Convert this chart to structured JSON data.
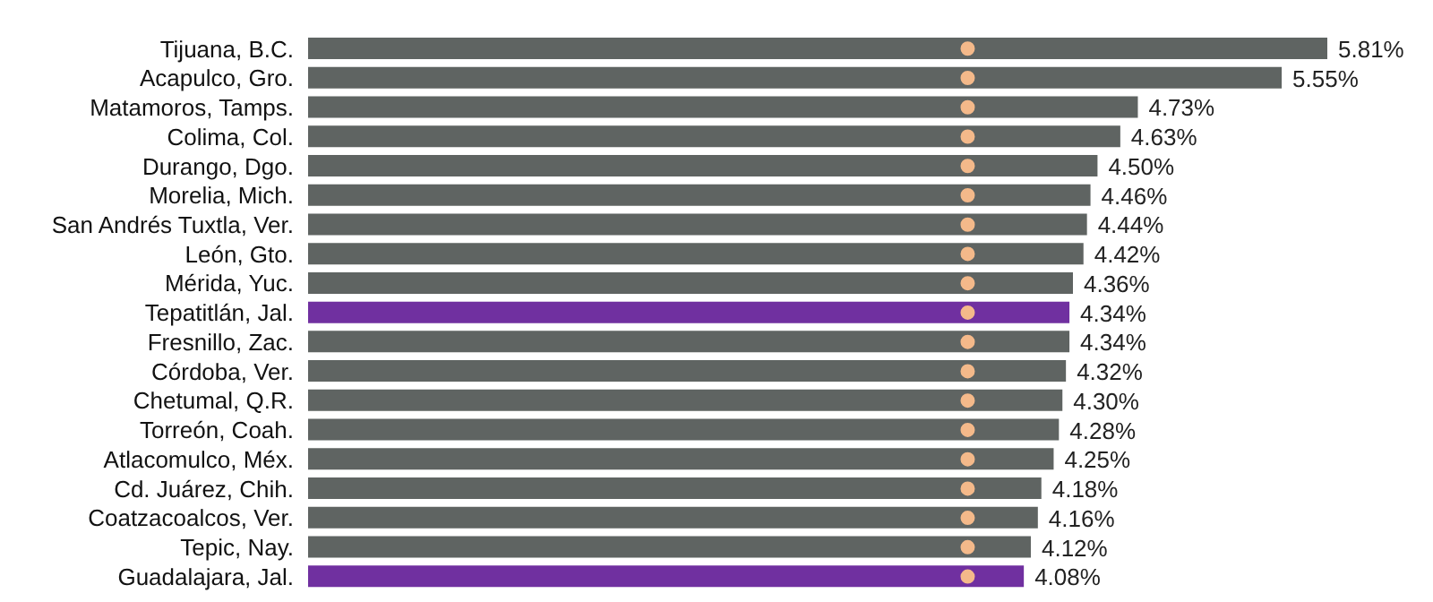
{
  "chart_data": {
    "type": "bar",
    "orientation": "horizontal",
    "categories": [
      "Tijuana, B.C.",
      "Acapulco, Gro.",
      "Matamoros, Tamps.",
      "Colima, Col.",
      "Durango, Dgo.",
      "Morelia, Mich.",
      "San Andrés Tuxtla, Ver.",
      "León, Gto.",
      "Mérida, Yuc.",
      "Tepatitlán, Jal.",
      "Fresnillo, Zac.",
      "Córdoba, Ver.",
      "Chetumal, Q.R.",
      "Torreón, Coah.",
      "Atlacomulco, Méx.",
      "Cd. Juárez, Chih.",
      "Coatzacoalcos, Ver.",
      "Tepic, Nay.",
      "Guadalajara, Jal."
    ],
    "values": [
      5.81,
      5.55,
      4.73,
      4.63,
      4.5,
      4.46,
      4.44,
      4.42,
      4.36,
      4.34,
      4.34,
      4.32,
      4.3,
      4.28,
      4.25,
      4.18,
      4.16,
      4.12,
      4.08
    ],
    "value_labels": [
      "5.81%",
      "5.55%",
      "4.73%",
      "4.63%",
      "4.50%",
      "4.46%",
      "4.44%",
      "4.42%",
      "4.36%",
      "4.34%",
      "4.34%",
      "4.32%",
      "4.30%",
      "4.28%",
      "4.25%",
      "4.18%",
      "4.16%",
      "4.12%",
      "4.08%"
    ],
    "colors": [
      "#5f6462",
      "#5f6462",
      "#5f6462",
      "#5f6462",
      "#5f6462",
      "#5f6462",
      "#5f6462",
      "#5f6462",
      "#5f6462",
      "#7030a0",
      "#5f6462",
      "#5f6462",
      "#5f6462",
      "#5f6462",
      "#5f6462",
      "#5f6462",
      "#5f6462",
      "#5f6462",
      "#7030a0"
    ],
    "ref_lines": [
      {
        "axis": "x",
        "value": 3.76,
        "color": "#f4b98a",
        "line_style": "dotted"
      }
    ],
    "tick_labels": "y"
  }
}
